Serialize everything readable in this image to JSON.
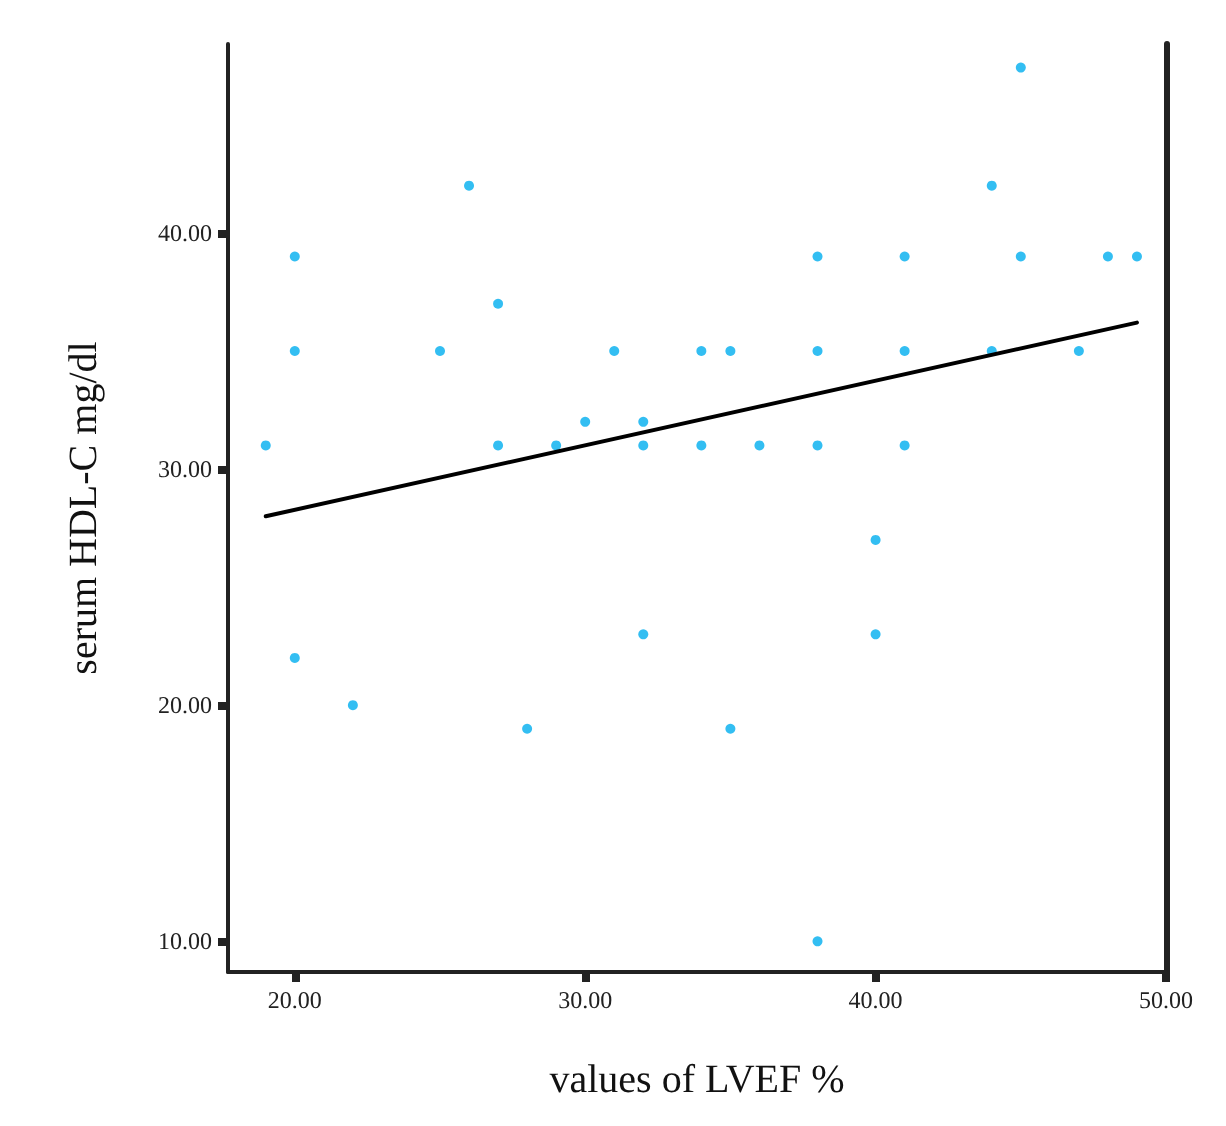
{
  "chart_data": {
    "type": "scatter",
    "xlabel": "values of LVEF %",
    "ylabel": "serum HDL-C mg/dl",
    "xlim": [
      17.7,
      50
    ],
    "ylim": [
      8.7,
      48
    ],
    "xticks": [
      {
        "value": 20,
        "label": "20.00"
      },
      {
        "value": 30,
        "label": "30.00"
      },
      {
        "value": 40,
        "label": "40.00"
      },
      {
        "value": 50,
        "label": "50.00"
      }
    ],
    "yticks": [
      {
        "value": 10,
        "label": "10.00"
      },
      {
        "value": 20,
        "label": "20.00"
      },
      {
        "value": 30,
        "label": "30.00"
      },
      {
        "value": 40,
        "label": "40.00"
      }
    ],
    "grid": false,
    "x": [
      19,
      20,
      20,
      20,
      22,
      25,
      26,
      27,
      27,
      28,
      29,
      30,
      31,
      32,
      32,
      32,
      34,
      34,
      35,
      35,
      36,
      38,
      38,
      38,
      38,
      40,
      40,
      41,
      41,
      41,
      44,
      44,
      45,
      45,
      47,
      48,
      49
    ],
    "series": [
      {
        "color": "#00aeef",
        "values": [
          31,
          39,
          35,
          22,
          20,
          35,
          42,
          37,
          31,
          19,
          31,
          32,
          35,
          32,
          31,
          23,
          35,
          31,
          35,
          19,
          31,
          39,
          35,
          31,
          10,
          27,
          23,
          39,
          35,
          31,
          42,
          35,
          47,
          39,
          35,
          39,
          39
        ]
      },
      {
        "type": "line",
        "color": "#000000",
        "marker": "none",
        "x": [
          19,
          49
        ],
        "values": [
          28,
          36.2
        ]
      }
    ]
  }
}
